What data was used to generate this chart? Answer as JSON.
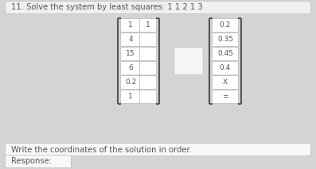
{
  "title": "11. Solve the system by least squares: 1 1 2 1 3",
  "bg_color": "#d4d4d4",
  "box_color": "#ffffff",
  "box_edge": "#c0c0c0",
  "bracket_color": "#555555",
  "text_color": "#555555",
  "title_box_color": "#f0f0f0",
  "instr_box_color": "#f8f8f8",
  "left_col1": [
    "1",
    "4",
    "15",
    "6",
    "0.2",
    "1"
  ],
  "left_col2": [
    "1",
    "",
    "",
    "",
    "",
    ""
  ],
  "right_col": [
    "0.2",
    "0.35",
    "0.45",
    "0.4",
    "X",
    "="
  ],
  "instruction": "Write the coordinates of the solution in order.",
  "response_label": "Response:",
  "title_fontsize": 7.2,
  "cell_fontsize": 6.5
}
